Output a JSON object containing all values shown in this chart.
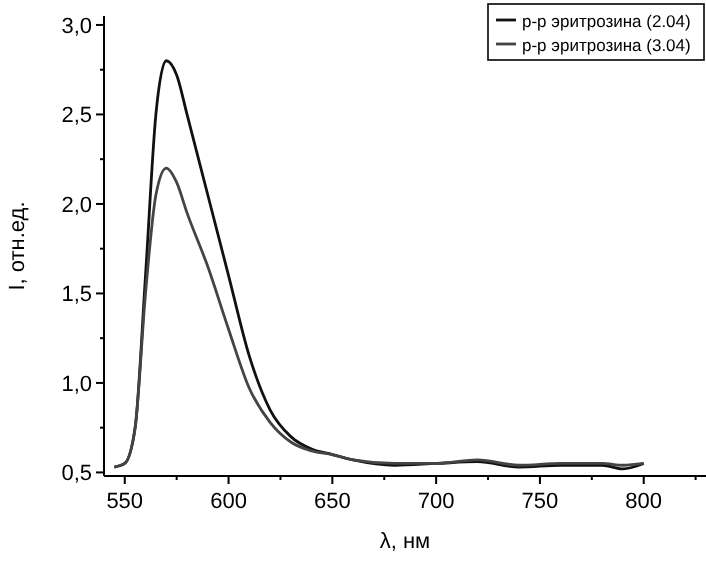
{
  "chart_data": {
    "type": "line",
    "xlabel": "λ, нм",
    "ylabel": "I, отн.ед.",
    "legend": "top right",
    "line_style": "solid",
    "grid": false,
    "xlim": [
      540,
      830
    ],
    "ylim": [
      0.48,
      3.05
    ],
    "xticks": [
      550,
      {
        "value": 575,
        "label": null
      },
      600,
      {
        "value": 625,
        "label": null
      },
      650,
      {
        "value": 675,
        "label": null
      },
      700,
      {
        "value": 725,
        "label": null
      },
      750,
      {
        "value": 775,
        "label": null
      },
      800,
      {
        "value": 825,
        "label": null
      }
    ],
    "yticks": [
      {
        "value": 0.5,
        "label": "0,5"
      },
      {
        "value": 0.75,
        "label": null
      },
      {
        "value": 1,
        "label": "1,0"
      },
      {
        "value": 1.25,
        "label": null
      },
      {
        "value": 1.5,
        "label": "1,5"
      },
      {
        "value": 1.75,
        "label": null
      },
      {
        "value": 2,
        "label": "2,0"
      },
      {
        "value": 2.25,
        "label": null
      },
      {
        "value": 2.5,
        "label": "2,5"
      },
      {
        "value": 2.75,
        "label": null
      },
      {
        "value": 3,
        "label": "3,0"
      }
    ],
    "x": [
      545,
      550,
      555,
      560,
      565,
      570,
      575,
      580,
      590,
      600,
      610,
      620,
      630,
      640,
      650,
      660,
      680,
      700,
      720,
      740,
      760,
      780,
      790,
      800
    ],
    "series": [
      {
        "name": "р-р эритрозина (2.04)",
        "color": "#111111",
        "values": [
          0.53,
          0.55,
          0.75,
          1.6,
          2.5,
          2.8,
          2.72,
          2.5,
          2.05,
          1.6,
          1.15,
          0.85,
          0.7,
          0.63,
          0.6,
          0.57,
          0.54,
          0.55,
          0.56,
          0.53,
          0.54,
          0.54,
          0.52,
          0.55
        ]
      },
      {
        "name": "р-р эритрозина (3.04)",
        "color": "#444444",
        "values": [
          0.53,
          0.55,
          0.75,
          1.5,
          2.05,
          2.2,
          2.12,
          1.95,
          1.65,
          1.3,
          0.97,
          0.78,
          0.67,
          0.62,
          0.6,
          0.57,
          0.55,
          0.55,
          0.57,
          0.54,
          0.55,
          0.55,
          0.54,
          0.55
        ]
      }
    ]
  }
}
